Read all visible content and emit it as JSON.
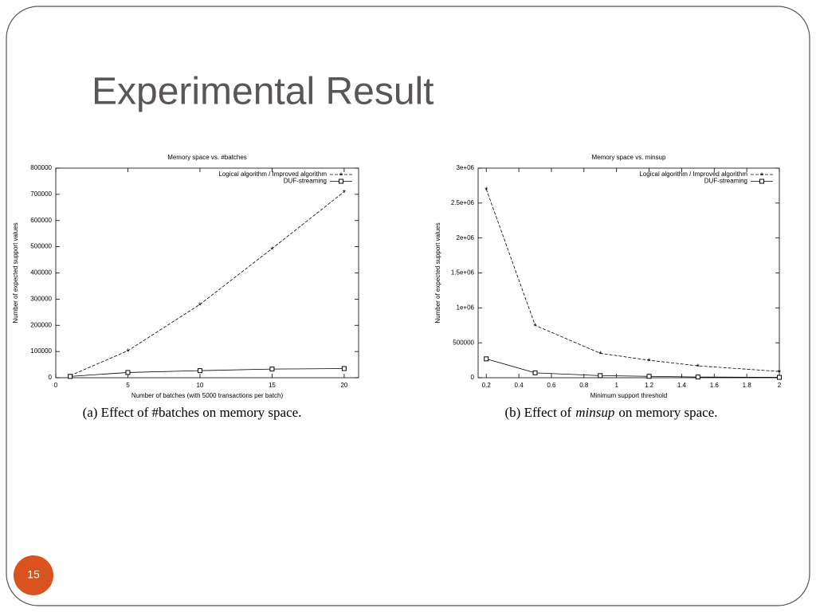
{
  "slide": {
    "title": "Experimental Result",
    "page_number": "15"
  },
  "chart_data": [
    {
      "type": "line",
      "title": "Memory space vs. #batches",
      "xlabel": "Number of batches (with 5000 transactions per batch)",
      "ylabel": "Number of expected support values",
      "caption": "(a) Effect of #batches on memory space.",
      "x": [
        1,
        5,
        10,
        15,
        20
      ],
      "series": [
        {
          "name": "Logical algorithm / Improved algorithm",
          "color": "#000000",
          "line_style": "dashed",
          "marker": "star",
          "values": [
            8000,
            103000,
            280000,
            493000,
            710000
          ]
        },
        {
          "name": "DUF-streaming",
          "color": "#000000",
          "line_style": "solid",
          "marker": "square",
          "values": [
            5000,
            20000,
            27000,
            33000,
            35000
          ]
        }
      ],
      "xlim": [
        0,
        21
      ],
      "xticks": [
        0,
        5,
        10,
        15,
        20
      ],
      "ylim": [
        0,
        800000
      ],
      "yticks": [
        0,
        100000,
        200000,
        300000,
        400000,
        500000,
        600000,
        700000,
        800000
      ],
      "grid": false,
      "legend": "top-right"
    },
    {
      "type": "line",
      "title": "Memory space vs. minsup",
      "xlabel": "Minimum support threshold",
      "ylabel": "Number of expected support values",
      "caption": [
        "(b) Effect of",
        "minsup",
        "on memory space."
      ],
      "x": [
        0.2,
        0.5,
        0.9,
        1.2,
        1.5,
        2
      ],
      "series": [
        {
          "name": "Logical algorithm / Improved algorithm",
          "color": "#000000",
          "line_style": "dashed",
          "marker": "star",
          "values": [
            2700000,
            750000,
            350000,
            250000,
            170000,
            90000
          ]
        },
        {
          "name": "DUF-streaming",
          "color": "#000000",
          "line_style": "solid",
          "marker": "square",
          "values": [
            270000,
            70000,
            30000,
            20000,
            10000,
            5000
          ]
        }
      ],
      "xlim": [
        0.15,
        2
      ],
      "xticks": [
        0.2,
        0.4,
        0.6,
        0.8,
        1,
        1.2,
        1.4,
        1.6,
        1.8,
        2
      ],
      "ylim": [
        0,
        3000000
      ],
      "yticks": [
        0,
        500000,
        {
          "value": 1000000,
          "label": "1e+06"
        },
        {
          "value": 1500000,
          "label": "1.5e+06"
        },
        {
          "value": 2000000,
          "label": "2e+06"
        },
        {
          "value": 2500000,
          "label": "2.5e+06"
        },
        {
          "value": 3000000,
          "label": "3e+06"
        }
      ],
      "grid": false,
      "legend": "top-right"
    }
  ]
}
